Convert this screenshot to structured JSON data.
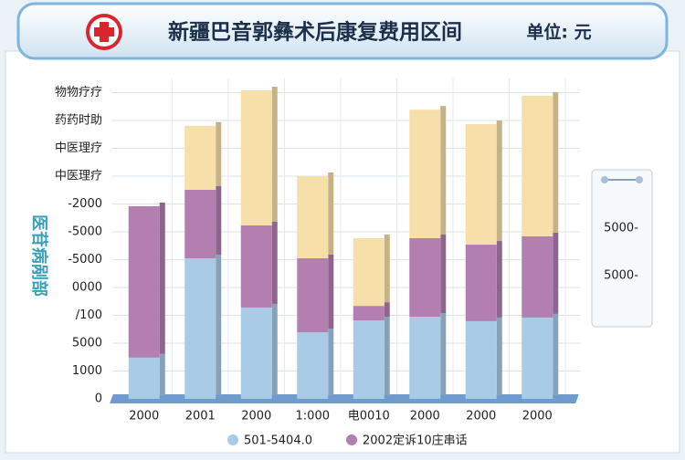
{
  "chart_data": {
    "type": "bar",
    "stacked": true,
    "title": "新疆巴音郭彝术后康复费用区间",
    "unit": "单位: 元",
    "ylabel": "医苷病剐部",
    "categories": [
      "2000",
      "2001",
      "2000",
      "1:000",
      "电0010",
      "2000",
      "2000",
      "2000"
    ],
    "series": [
      {
        "name": "501-5404.0",
        "color": "#a9cbe6",
        "values": [
          1.48,
          5.05,
          3.28,
          2.39,
          2.82,
          2.95,
          2.79,
          2.92
        ]
      },
      {
        "name": "2002定诉10庄串话",
        "color": "#b27fb0",
        "values": [
          5.44,
          2.46,
          2.95,
          2.66,
          0.52,
          2.82,
          2.75,
          2.92
        ]
      },
      {
        "color": "#f6dfa8",
        "values": [
          0,
          2.3,
          4.85,
          2.95,
          2.43,
          4.62,
          4.33,
          5.05
        ]
      }
    ],
    "ylim": [
      0,
      11.5
    ],
    "yticks": [
      0,
      {
        "value": 1,
        "label": "1000"
      },
      {
        "value": 2,
        "label": "5000"
      },
      {
        "value": 3,
        "label": "/100"
      },
      {
        "value": 4,
        "label": "0000"
      },
      {
        "value": 5,
        "label": "-5000"
      },
      {
        "value": 6,
        "label": "-5000"
      },
      {
        "value": 7,
        "label": "-2000"
      },
      {
        "value": 8,
        "label": "中医理疗"
      },
      {
        "value": 9,
        "label": "中医理疗"
      },
      {
        "value": 10,
        "label": "药药时助"
      },
      {
        "value": 11,
        "label": "物物疗疗"
      }
    ],
    "grid": true
  },
  "side_panel": {
    "labels": [
      "5000-",
      "5000-"
    ]
  }
}
